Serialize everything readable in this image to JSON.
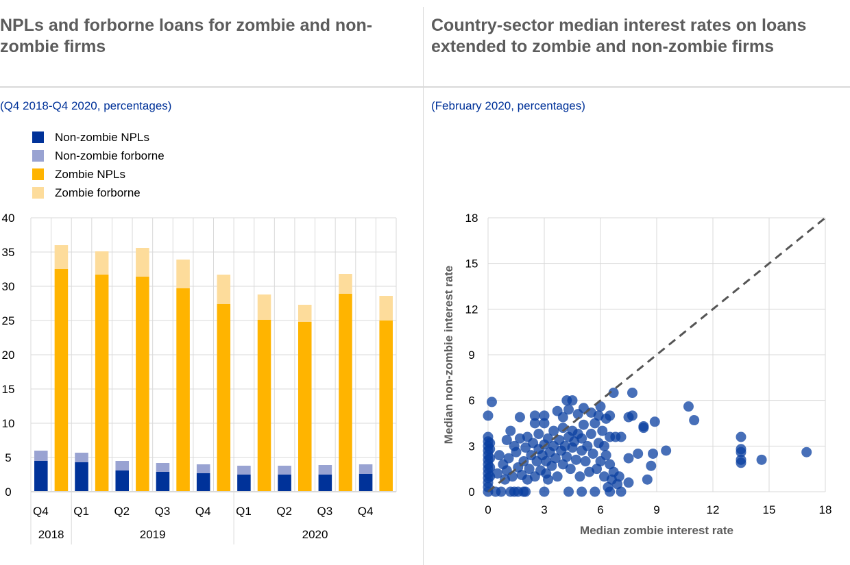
{
  "left_panel": {
    "title": "NPLs and forborne loans for zombie and non-zombie firms",
    "subtitle": "(Q4 2018-Q4 2020, percentages)"
  },
  "right_panel": {
    "title": "Country-sector median interest rates on loans extended to zombie and non-zombie firms",
    "subtitle": "(February 2020, percentages)"
  },
  "colors": {
    "non_zombie_npl": "#003299",
    "non_zombie_forborne": "#99a3d2",
    "zombie_npl": "#ffb400",
    "zombie_forborne": "#fddc9b",
    "scatter_point": "#0a3fa0",
    "diagonal": "#555555",
    "grid": "#d9d9d9",
    "title": "#5c5c5c",
    "subtitle": "#003299"
  },
  "chart_data": [
    {
      "type": "bar",
      "stacked": true,
      "title": "NPLs and forborne loans for zombie and non-zombie firms",
      "subtitle": "(Q4 2018-Q4 2020, percentages)",
      "categories": [
        "Q4",
        "Q1",
        "Q2",
        "Q3",
        "Q4",
        "Q1",
        "Q2",
        "Q3",
        "Q4"
      ],
      "year_groups": [
        {
          "label": "2018",
          "span": 1
        },
        {
          "label": "2019",
          "span": 4
        },
        {
          "label": "2020",
          "span": 4
        }
      ],
      "legend": [
        {
          "label": "Non-zombie NPLs",
          "key": "non_zombie_npl"
        },
        {
          "label": "Non-zombie forborne",
          "key": "non_zombie_forborne"
        },
        {
          "label": "Zombie NPLs",
          "key": "zombie_npl"
        },
        {
          "label": "Zombie forborne",
          "key": "zombie_forborne"
        }
      ],
      "legend_position": "top-left",
      "series": [
        {
          "name": "Non-zombie NPLs",
          "stack": "non_zombie",
          "values": [
            4.5,
            4.3,
            3.1,
            2.9,
            2.7,
            2.5,
            2.5,
            2.5,
            2.6
          ]
        },
        {
          "name": "Non-zombie forborne",
          "stack": "non_zombie",
          "values": [
            1.5,
            1.4,
            1.4,
            1.3,
            1.3,
            1.3,
            1.3,
            1.4,
            1.4
          ]
        },
        {
          "name": "Zombie NPLs",
          "stack": "zombie",
          "values": [
            32.5,
            31.7,
            31.4,
            29.7,
            27.4,
            25.1,
            24.8,
            28.9,
            25.0
          ]
        },
        {
          "name": "Zombie forborne",
          "stack": "zombie",
          "values": [
            3.5,
            3.4,
            4.2,
            4.2,
            4.3,
            3.7,
            2.5,
            2.9,
            3.6
          ]
        }
      ],
      "ylim": [
        0,
        40
      ],
      "yticks": [
        0,
        5,
        10,
        15,
        20,
        25,
        30,
        35,
        40
      ],
      "grid": true,
      "xlabel": "",
      "ylabel": ""
    },
    {
      "type": "scatter",
      "title": "Country-sector median interest rates on loans extended to zombie and non-zombie firms",
      "subtitle": "(February 2020, percentages)",
      "xlabel": "Median zombie interest rate",
      "ylabel": "Median non-zombie interest rate",
      "xlim": [
        0,
        18
      ],
      "ylim": [
        0,
        18
      ],
      "xticks": [
        0,
        3,
        6,
        9,
        12,
        15,
        18
      ],
      "yticks": [
        0,
        3,
        6,
        9,
        12,
        15,
        18
      ],
      "grid": true,
      "reference_line": {
        "type": "45-degree",
        "style": "dashed",
        "from": [
          0,
          0
        ],
        "to": [
          18,
          18
        ]
      },
      "points": [
        [
          0,
          0
        ],
        [
          0,
          0.3
        ],
        [
          0,
          0.6
        ],
        [
          0,
          0.9
        ],
        [
          0,
          1.2
        ],
        [
          0,
          1.5
        ],
        [
          0,
          1.8
        ],
        [
          0,
          2.1
        ],
        [
          0,
          2.4
        ],
        [
          0,
          2.7
        ],
        [
          0,
          3.0
        ],
        [
          0,
          3.3
        ],
        [
          0,
          3.6
        ],
        [
          0,
          5.0
        ],
        [
          0.2,
          5.9
        ],
        [
          0.1,
          1.0
        ],
        [
          0.1,
          1.6
        ],
        [
          0.1,
          2.2
        ],
        [
          0.1,
          2.8
        ],
        [
          0.1,
          3.2
        ],
        [
          0.4,
          0
        ],
        [
          0.7,
          0
        ],
        [
          1.2,
          0
        ],
        [
          1.4,
          0
        ],
        [
          1.6,
          0
        ],
        [
          1.9,
          0
        ],
        [
          2.0,
          0
        ],
        [
          3.0,
          0
        ],
        [
          4.3,
          0
        ],
        [
          5.0,
          0
        ],
        [
          5.7,
          0
        ],
        [
          6.5,
          0
        ],
        [
          7.1,
          0
        ],
        [
          0.5,
          1.2
        ],
        [
          0.6,
          2.4
        ],
        [
          0.8,
          1.8
        ],
        [
          0.9,
          0.8
        ],
        [
          1.0,
          1.4
        ],
        [
          1.0,
          3.4
        ],
        [
          1.1,
          2.2
        ],
        [
          1.2,
          4.0
        ],
        [
          1.3,
          1.0
        ],
        [
          1.4,
          3.0
        ],
        [
          1.5,
          2.6
        ],
        [
          1.6,
          1.6
        ],
        [
          1.7,
          3.5
        ],
        [
          1.7,
          4.9
        ],
        [
          1.8,
          1.1
        ],
        [
          1.9,
          2.0
        ],
        [
          2.0,
          2.9
        ],
        [
          2.1,
          0.8
        ],
        [
          2.1,
          3.6
        ],
        [
          2.2,
          1.5
        ],
        [
          2.3,
          2.4
        ],
        [
          2.4,
          3.2
        ],
        [
          2.5,
          1.0
        ],
        [
          2.5,
          4.5
        ],
        [
          2.5,
          5.0
        ],
        [
          2.6,
          2.0
        ],
        [
          2.7,
          2.8
        ],
        [
          2.7,
          3.8
        ],
        [
          2.8,
          1.4
        ],
        [
          2.9,
          2.4
        ],
        [
          3.0,
          3.1
        ],
        [
          3.0,
          4.5
        ],
        [
          3.0,
          5.0
        ],
        [
          3.1,
          1.2
        ],
        [
          3.1,
          2.0
        ],
        [
          3.2,
          0.8
        ],
        [
          3.2,
          3.5
        ],
        [
          3.3,
          2.6
        ],
        [
          3.4,
          1.7
        ],
        [
          3.5,
          3.0
        ],
        [
          3.5,
          4.0
        ],
        [
          3.6,
          2.2
        ],
        [
          3.7,
          5.3
        ],
        [
          3.7,
          1.0
        ],
        [
          3.8,
          3.4
        ],
        [
          3.9,
          2.7
        ],
        [
          4.0,
          1.8
        ],
        [
          4.0,
          4.2
        ],
        [
          4.0,
          4.9
        ],
        [
          4.1,
          3.0
        ],
        [
          4.2,
          6.0
        ],
        [
          4.2,
          2.3
        ],
        [
          4.3,
          3.6
        ],
        [
          4.3,
          5.4
        ],
        [
          4.4,
          1.5
        ],
        [
          4.5,
          2.9
        ],
        [
          4.5,
          6.0
        ],
        [
          4.5,
          4.0
        ],
        [
          4.6,
          3.3
        ],
        [
          4.7,
          2.1
        ],
        [
          4.8,
          3.8
        ],
        [
          4.8,
          5.1
        ],
        [
          4.9,
          1.0
        ],
        [
          5.0,
          2.7
        ],
        [
          5.0,
          3.5
        ],
        [
          5.1,
          4.4
        ],
        [
          5.1,
          5.5
        ],
        [
          5.2,
          2.0
        ],
        [
          5.3,
          3.0
        ],
        [
          5.4,
          1.3
        ],
        [
          5.5,
          3.8
        ],
        [
          5.5,
          5.2
        ],
        [
          5.6,
          2.5
        ],
        [
          5.7,
          4.5
        ],
        [
          5.8,
          1.5
        ],
        [
          5.9,
          3.2
        ],
        [
          5.9,
          5.0
        ],
        [
          6.0,
          5.6
        ],
        [
          6.0,
          2.0
        ],
        [
          6.1,
          4.0
        ],
        [
          6.2,
          1.0
        ],
        [
          6.2,
          3.0
        ],
        [
          6.3,
          2.4
        ],
        [
          6.3,
          4.8
        ],
        [
          6.5,
          1.8
        ],
        [
          6.5,
          3.6
        ],
        [
          6.5,
          5.0
        ],
        [
          6.7,
          6.5
        ],
        [
          6.4,
          0.3
        ],
        [
          6.6,
          0.8
        ],
        [
          6.7,
          1.3
        ],
        [
          6.8,
          3.6
        ],
        [
          6.9,
          0.5
        ],
        [
          7.0,
          1.0
        ],
        [
          7.1,
          3.6
        ],
        [
          7.5,
          0.6
        ],
        [
          7.5,
          2.2
        ],
        [
          7.5,
          4.9
        ],
        [
          7.7,
          5.0
        ],
        [
          7.7,
          6.5
        ],
        [
          8.0,
          2.5
        ],
        [
          8.3,
          4.3
        ],
        [
          8.3,
          4.2
        ],
        [
          8.5,
          0.8
        ],
        [
          8.7,
          1.7
        ],
        [
          8.8,
          2.5
        ],
        [
          8.9,
          4.6
        ],
        [
          9.5,
          2.7
        ],
        [
          10.7,
          5.6
        ],
        [
          11.0,
          4.7
        ],
        [
          13.5,
          3.6
        ],
        [
          13.5,
          2.8
        ],
        [
          13.5,
          2.6
        ],
        [
          13.5,
          2.1
        ],
        [
          13.5,
          1.9
        ],
        [
          14.6,
          2.1
        ],
        [
          17.0,
          2.6
        ]
      ]
    }
  ]
}
